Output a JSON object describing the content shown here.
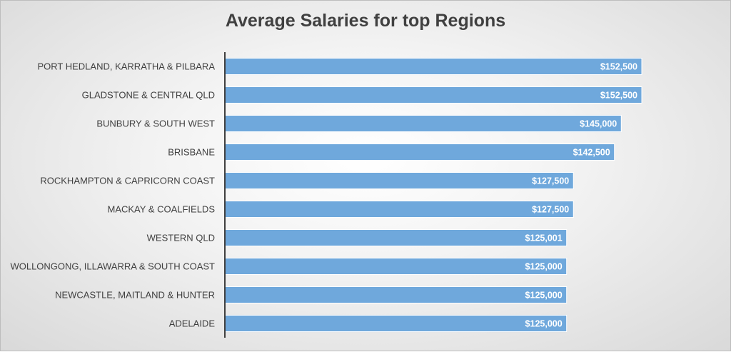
{
  "chart_data": {
    "type": "bar",
    "orientation": "horizontal",
    "title": "Average Salaries for top Regions",
    "xlabel": "",
    "ylabel": "",
    "xlim": [
      0,
      152500
    ],
    "grid": false,
    "legend": "none",
    "value_prefix": "$",
    "bar_color": "#6fa8dc",
    "axis_color": "#404040",
    "categories": [
      "PORT HEDLAND, KARRATHA & PILBARA",
      "GLADSTONE & CENTRAL QLD",
      "BUNBURY & SOUTH WEST",
      "BRISBANE",
      "ROCKHAMPTON & CAPRICORN COAST",
      "MACKAY & COALFIELDS",
      "WESTERN QLD",
      "WOLLONGONG, ILLAWARRA & SOUTH COAST",
      "NEWCASTLE, MAITLAND & HUNTER",
      "ADELAIDE"
    ],
    "values": [
      152500,
      152500,
      145000,
      142500,
      127500,
      127500,
      125001,
      125000,
      125000,
      125000
    ],
    "data_labels": [
      "$152,500",
      "$152,500",
      "$145,000",
      "$142,500",
      "$127,500",
      "$127,500",
      "$125,001",
      "$125,000",
      "$125,000",
      "$125,000"
    ]
  }
}
